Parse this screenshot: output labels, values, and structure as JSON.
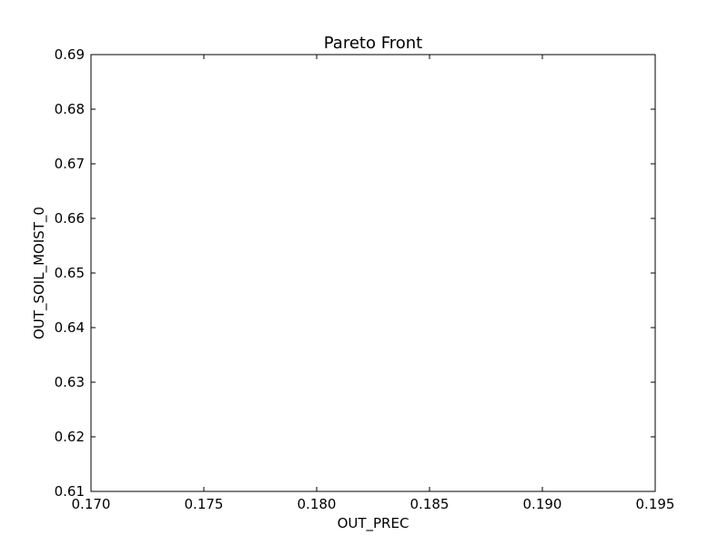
{
  "chart_data": {
    "type": "scatter",
    "title": "Pareto Front",
    "xlabel": "OUT_PREC",
    "ylabel": "OUT_SOIL_MOIST_0",
    "xlim": [
      0.17,
      0.195
    ],
    "ylim": [
      0.61,
      0.69
    ],
    "xticks": [
      "0.170",
      "0.175",
      "0.180",
      "0.185",
      "0.190",
      "0.195"
    ],
    "yticks": [
      "0.61",
      "0.62",
      "0.63",
      "0.64",
      "0.65",
      "0.66",
      "0.67",
      "0.68",
      "0.69"
    ],
    "grid": false,
    "series": [
      {
        "x": [],
        "y": []
      }
    ]
  }
}
